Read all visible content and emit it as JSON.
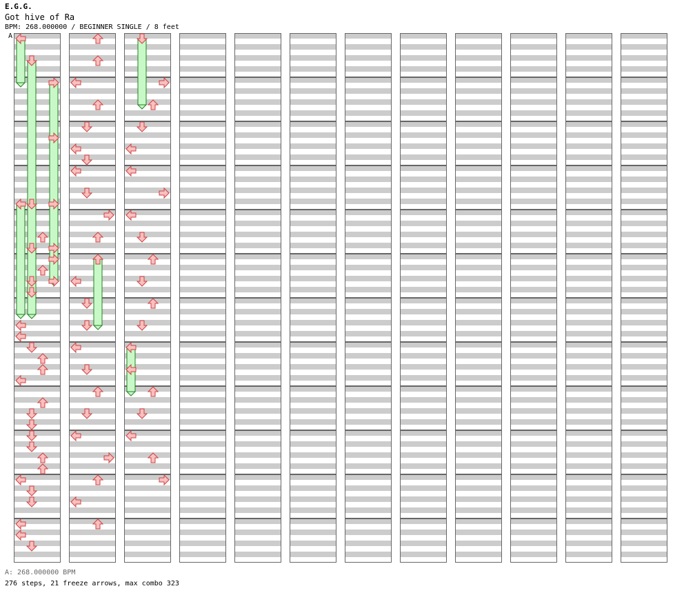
{
  "header": {
    "artist": "E.G.G.",
    "title": "Got hive of Ra",
    "info": "BPM: 268.000000 / BEGINNER SINGLE / 8 feet"
  },
  "marker": {
    "label": "A"
  },
  "footer": {
    "bpm_line": "A: 268.000000 BPM",
    "stats": "276 steps, 21 freeze arrows, max combo 323"
  },
  "colors": {
    "arrow_red": "#f8c0c0",
    "arrow_red_stroke": "#d04040",
    "arrow_blue": "#a0d0f8",
    "arrow_blue_stroke": "#2060c0",
    "freeze_fill": "#c8f8c8",
    "freeze_stroke": "#208020",
    "stripe": "#cccccc"
  },
  "chart_data": {
    "type": "step-chart",
    "columns": 12,
    "measures_per_column": 12,
    "lanes": [
      "left",
      "down",
      "up",
      "right"
    ],
    "notes": [
      [
        0,
        0,
        "hold",
        4.0
      ],
      [
        2,
        1,
        "hold",
        18.0
      ],
      [
        4,
        3,
        "hold",
        18.0
      ],
      [
        9,
        3,
        "tap"
      ],
      [
        15,
        0,
        "hold",
        10.0
      ],
      [
        15,
        1,
        "hold",
        10.0
      ],
      [
        15,
        3,
        "tap"
      ],
      [
        18,
        2,
        "tap"
      ],
      [
        19,
        1,
        "tap"
      ],
      [
        19,
        3,
        "tap"
      ],
      [
        20,
        3,
        "tap"
      ],
      [
        21,
        2,
        "tap"
      ],
      [
        22,
        1,
        "tap"
      ],
      [
        22,
        3,
        "tap"
      ],
      [
        23,
        1,
        "tap"
      ],
      [
        26,
        0,
        "tap"
      ],
      [
        27,
        0,
        "tap"
      ],
      [
        28,
        1,
        "tap"
      ],
      [
        29,
        2,
        "tap"
      ],
      [
        30,
        2,
        "tap"
      ],
      [
        31,
        0,
        "tap"
      ],
      [
        33,
        2,
        "tap"
      ],
      [
        34,
        1,
        "tap"
      ],
      [
        35,
        1,
        "tap"
      ],
      [
        36,
        1,
        "tap"
      ],
      [
        37,
        1,
        "tap"
      ],
      [
        38,
        2,
        "tap"
      ],
      [
        39,
        2,
        "tap"
      ],
      [
        40,
        0,
        "tap"
      ],
      [
        41,
        1,
        "tap"
      ],
      [
        42,
        1,
        "tap"
      ],
      [
        44,
        0,
        "tap"
      ],
      [
        45,
        0,
        "tap"
      ],
      [
        46,
        1,
        "tap"
      ],
      [
        48,
        2,
        "tap"
      ],
      [
        50,
        2,
        "tap"
      ],
      [
        52,
        0,
        "tap"
      ],
      [
        54,
        2,
        "tap"
      ],
      [
        56,
        1,
        "tap"
      ],
      [
        58,
        0,
        "tap"
      ],
      [
        59,
        1,
        "tap"
      ],
      [
        60,
        0,
        "tap"
      ],
      [
        62,
        1,
        "tap"
      ],
      [
        64,
        3,
        "tap"
      ],
      [
        66,
        2,
        "tap"
      ],
      [
        68,
        2,
        "hold",
        6.0
      ],
      [
        70,
        0,
        "tap"
      ],
      [
        72,
        1,
        "tap"
      ],
      [
        74,
        1,
        "tap"
      ],
      [
        76,
        0,
        "tap"
      ],
      [
        78,
        1,
        "tap"
      ],
      [
        80,
        2,
        "tap"
      ],
      [
        82,
        1,
        "tap"
      ],
      [
        84,
        0,
        "tap"
      ],
      [
        86,
        3,
        "tap"
      ],
      [
        88,
        2,
        "tap"
      ],
      [
        90,
        0,
        "tap"
      ],
      [
        92,
        2,
        "tap"
      ],
      [
        96,
        1,
        "hold",
        6.0
      ],
      [
        100,
        3,
        "tap"
      ],
      [
        102,
        2,
        "tap"
      ],
      [
        104,
        1,
        "tap"
      ],
      [
        106,
        0,
        "tap"
      ],
      [
        108,
        0,
        "tap"
      ],
      [
        110,
        3,
        "tap"
      ],
      [
        112,
        0,
        "tap"
      ],
      [
        114,
        1,
        "tap"
      ],
      [
        116,
        2,
        "tap"
      ],
      [
        118,
        1,
        "tap"
      ],
      [
        120,
        2,
        "tap"
      ],
      [
        122,
        1,
        "tap"
      ],
      [
        124,
        0,
        "hold",
        4.0
      ],
      [
        126,
        0,
        "tap"
      ],
      [
        128,
        2,
        "tap"
      ],
      [
        130,
        1,
        "tap"
      ],
      [
        132,
        0,
        "tap"
      ],
      [
        134,
        2,
        "tap"
      ],
      [
        136,
        3,
        "tap"
      ]
    ]
  }
}
